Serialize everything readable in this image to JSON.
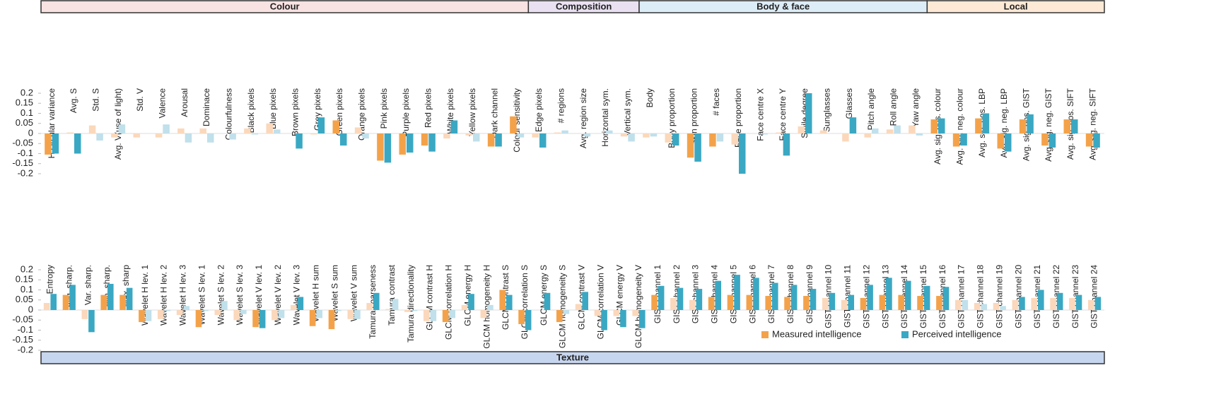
{
  "chart_data": [
    {
      "type": "bar",
      "groups": [
        {
          "name": "Colour",
          "color": "#f8e2e2",
          "count": 22
        },
        {
          "name": "Composition",
          "color": "#e9e1f2",
          "count": 5
        },
        {
          "name": "Body & face",
          "color": "#ddedf8",
          "count": 13
        },
        {
          "name": "Local",
          "color": "#fde9d5",
          "count": 8
        }
      ],
      "categories": [
        "H circular variance",
        "Avg. S",
        "Std. S",
        "Avg. V(use of light)",
        "Std. V",
        "Valence",
        "Arousal",
        "Dominace",
        "Colourfulness",
        "Black pixels",
        "Blue pixels",
        "Brown pixels",
        "Grey pixels",
        "Green pixels",
        "Orange pixels",
        "Pink pixels",
        "Purple pixels",
        "Red pixels",
        "White pixels",
        "Yellow pixels",
        "Dark channel",
        "Colour sensitivity",
        "Edge pixels",
        "# regions",
        "Avg. region size",
        "Horizontal sym.",
        "Vertical sym.",
        "Body",
        "Body proportion",
        "Skin proportion",
        "# faces",
        "Face proportion",
        "Face centre X",
        "Face centre Y",
        "Smile degree",
        "Sunglasses",
        "Glasses",
        "Pitch angle",
        "Roll angle",
        "Yaw angle",
        "Avg. sig. pos. colour",
        "Avg. sig. neg. colour",
        "Avg. sig. pos. LBP",
        "Avg. sig. neg. LBP",
        "Avg. sig. pos. GIST",
        "Avg. sig. neg. GIST",
        "Avg. sig. pos. SIFT",
        "Avg. sig. neg. SIFT"
      ],
      "series": [
        {
          "color": "#f4a24a",
          "faded_color": "#fbd8bb",
          "values": [
            -0.105,
            0.005,
            0.04,
            -0.02,
            -0.02,
            -0.02,
            0.025,
            0.025,
            0.0,
            0.025,
            0.05,
            0.0,
            -0.005,
            0.065,
            0.03,
            -0.135,
            -0.105,
            -0.06,
            -0.025,
            -0.01,
            -0.065,
            0.085,
            -0.02,
            0.005,
            0.0,
            0.0,
            -0.015,
            -0.02,
            -0.045,
            -0.12,
            -0.065,
            -0.055,
            0.0,
            0.005,
            0.035,
            0.015,
            -0.04,
            -0.02,
            0.02,
            0.04,
            0.07,
            -0.065,
            0.075,
            -0.075,
            0.07,
            -0.06,
            0.07,
            -0.065
          ],
          "significant": [
            true,
            false,
            false,
            false,
            false,
            false,
            false,
            false,
            false,
            false,
            false,
            false,
            false,
            true,
            false,
            true,
            true,
            true,
            false,
            false,
            true,
            true,
            false,
            false,
            false,
            false,
            false,
            false,
            false,
            true,
            true,
            false,
            false,
            false,
            false,
            false,
            false,
            false,
            false,
            false,
            true,
            true,
            true,
            true,
            true,
            true,
            true,
            true
          ]
        },
        {
          "color": "#3aa8c3",
          "faded_color": "#c0e0eb",
          "values": [
            -0.1,
            -0.1,
            -0.035,
            0.045,
            0.0,
            0.045,
            -0.045,
            -0.045,
            -0.03,
            -0.005,
            0.02,
            -0.075,
            0.08,
            -0.06,
            -0.025,
            -0.145,
            -0.095,
            -0.09,
            0.065,
            -0.04,
            -0.065,
            -0.02,
            -0.07,
            0.015,
            -0.015,
            0.015,
            -0.04,
            -0.015,
            -0.06,
            -0.14,
            -0.04,
            -0.2,
            -0.005,
            -0.11,
            0.2,
            0.0,
            0.08,
            0.025,
            0.04,
            -0.01,
            0.075,
            -0.06,
            0.1,
            -0.09,
            0.095,
            -0.07,
            0.07,
            -0.07
          ],
          "significant": [
            true,
            true,
            false,
            false,
            false,
            false,
            false,
            false,
            false,
            false,
            false,
            true,
            true,
            true,
            false,
            true,
            true,
            true,
            true,
            false,
            true,
            false,
            true,
            false,
            false,
            false,
            false,
            false,
            true,
            true,
            false,
            true,
            false,
            true,
            true,
            false,
            true,
            false,
            false,
            false,
            true,
            true,
            true,
            true,
            true,
            true,
            true,
            true
          ]
        }
      ],
      "ylim": [
        -0.2,
        0.2
      ],
      "yticks": [
        0.2,
        0.15,
        0.1,
        0.05,
        0,
        -0.05,
        -0.1,
        -0.15,
        -0.2
      ]
    },
    {
      "type": "bar",
      "groups": [
        {
          "name": "Texture",
          "color": "#c7d6ef",
          "count": 56
        }
      ],
      "categories": [
        "Entropy",
        "Avg. sharp.",
        "Var. sharp.",
        "Min. sharp.",
        "Max. sharp",
        "Wavelet H lev. 1",
        "Wavelet H lev. 2",
        "Wavelet H lev. 3",
        "Wavelet S lev. 1",
        "Wavelet S lev. 2",
        "Wavelet S lev. 3",
        "Wavelet V lev. 1",
        "Wavelet V lev. 2",
        "Wavelet V lev. 3",
        "Wavelet H sum",
        "Wavelet S sum",
        "Wavelet V sum",
        "Tamura coarseness",
        "Tamura contrast",
        "Tamura directionality",
        "GLCM contrast H",
        "GLCM correlation H",
        "GLCM energy H",
        "GLCM homogeneity H",
        "GLCM contrast S",
        "GLCM correlation S",
        "GLCM energy S",
        "GLCM homogeneity S",
        "GLCM contrast V",
        "GLCM correlation V",
        "GLCM energy V",
        "GLCM homogeneity V",
        "GIST channel 1",
        "GIST channel 2",
        "GIST channel 3",
        "GIST channel 4",
        "GIST channel 5",
        "GIST channel 6",
        "GIST channel 7",
        "GIST channel 8",
        "GIST channel 9",
        "GIST channel 10",
        "GIST channel 11",
        "GIST channel 12",
        "GIST channel 13",
        "GIST channel 14",
        "GIST channel 15",
        "GIST channel 16",
        "GIST channel 17",
        "GIST channel 18",
        "GIST channel 19",
        "GIST channel 20",
        "GIST channel 21",
        "GIST channel 22",
        "GIST channel 23",
        "GIST channel 24"
      ],
      "series": [
        {
          "name": "Measured intelligence",
          "color": "#f4a24a",
          "faded_color": "#fbd8bb",
          "values": [
            0.035,
            0.075,
            -0.045,
            0.075,
            0.075,
            -0.06,
            -0.045,
            -0.025,
            -0.085,
            -0.025,
            -0.05,
            -0.085,
            -0.05,
            0.025,
            -0.08,
            -0.095,
            -0.045,
            0.035,
            0.005,
            -0.01,
            -0.055,
            -0.06,
            0.025,
            -0.04,
            0.1,
            -0.07,
            0.0,
            -0.06,
            0.03,
            -0.03,
            -0.03,
            -0.03,
            0.075,
            0.06,
            0.05,
            0.065,
            0.075,
            0.075,
            0.07,
            0.065,
            0.07,
            0.06,
            0.05,
            0.06,
            0.075,
            0.075,
            0.07,
            0.07,
            0.05,
            0.035,
            0.035,
            0.05,
            0.06,
            0.06,
            0.06,
            0.05
          ],
          "significant": [
            false,
            true,
            false,
            true,
            true,
            true,
            false,
            false,
            true,
            false,
            false,
            true,
            false,
            false,
            true,
            true,
            false,
            false,
            false,
            false,
            false,
            true,
            false,
            false,
            true,
            true,
            false,
            true,
            false,
            false,
            false,
            false,
            true,
            false,
            false,
            true,
            true,
            true,
            true,
            true,
            true,
            false,
            false,
            true,
            true,
            true,
            true,
            true,
            false,
            false,
            false,
            false,
            false,
            false,
            false,
            false
          ]
        },
        {
          "name": "Perceived intelligence",
          "color": "#3aa8c3",
          "faded_color": "#c0e0eb",
          "values": [
            0.08,
            0.125,
            -0.11,
            0.13,
            0.11,
            -0.055,
            -0.005,
            0.02,
            -0.005,
            0.045,
            -0.02,
            -0.09,
            -0.04,
            0.065,
            -0.04,
            -0.005,
            -0.045,
            0.085,
            0.055,
            -0.005,
            -0.055,
            -0.04,
            0.08,
            0.025,
            0.075,
            -0.1,
            0.085,
            -0.02,
            0.09,
            -0.1,
            -0.085,
            -0.09,
            0.12,
            0.11,
            0.105,
            0.145,
            0.175,
            0.16,
            0.135,
            0.125,
            0.105,
            0.085,
            0.075,
            0.125,
            0.16,
            0.145,
            0.12,
            0.115,
            0.05,
            0.03,
            0.02,
            0.065,
            0.1,
            0.085,
            0.075,
            0.065
          ],
          "significant": [
            true,
            true,
            true,
            true,
            true,
            false,
            false,
            false,
            false,
            false,
            false,
            true,
            false,
            true,
            false,
            false,
            false,
            true,
            false,
            false,
            false,
            false,
            true,
            false,
            true,
            true,
            true,
            false,
            true,
            true,
            true,
            true,
            true,
            true,
            true,
            true,
            true,
            true,
            true,
            true,
            true,
            true,
            true,
            true,
            true,
            true,
            true,
            true,
            false,
            false,
            false,
            true,
            true,
            true,
            true,
            true
          ]
        }
      ],
      "ylim": [
        -0.2,
        0.2
      ],
      "yticks": [
        0.2,
        0.15,
        0.1,
        0.05,
        0,
        -0.05,
        -0.1,
        -0.15,
        -0.2
      ],
      "legend": "lower right"
    }
  ]
}
